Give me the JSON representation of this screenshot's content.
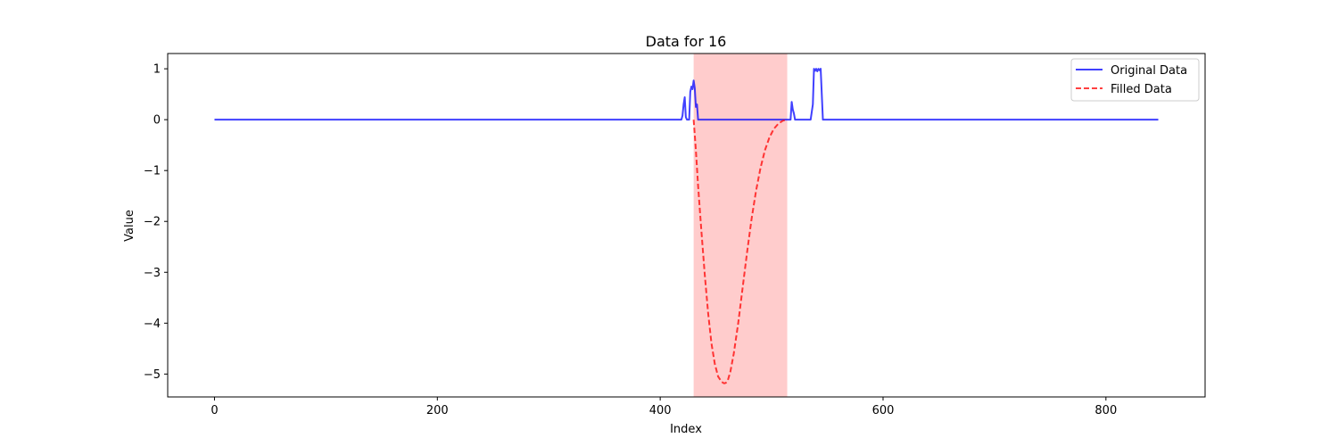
{
  "chart_data": {
    "type": "line",
    "title": "Data for 16",
    "xlabel": "Index",
    "ylabel": "Value",
    "xlim": [
      -42,
      889
    ],
    "ylim": [
      -5.45,
      1.3
    ],
    "x_ticks": [
      0,
      200,
      400,
      600,
      800
    ],
    "y_ticks": [
      1,
      0,
      -1,
      -2,
      -3,
      -4,
      -5
    ],
    "x_tick_labels": [
      "0",
      "200",
      "400",
      "600",
      "800"
    ],
    "y_tick_labels": [
      "1",
      "0",
      "−1",
      "−2",
      "−3",
      "−4",
      "−5"
    ],
    "grid": false,
    "legend_position": "top-right",
    "shaded_region": {
      "x_start": 430,
      "x_end": 514,
      "color": "#ff0000",
      "alpha": 0.2
    },
    "series": [
      {
        "name": "Original Data",
        "color": "#0000ff",
        "style": "solid",
        "x": [
          0,
          419,
          420,
          421,
          422,
          423,
          424,
          426,
          427,
          428,
          429,
          430,
          431,
          432,
          433,
          434,
          515,
          517,
          518,
          519,
          520,
          521,
          535,
          537,
          538,
          539,
          540,
          541,
          542,
          543,
          544,
          545,
          546,
          548,
          549,
          847
        ],
        "y": [
          0,
          0,
          0.08,
          0.3,
          0.44,
          0.05,
          0,
          0,
          0.55,
          0.65,
          0.6,
          0.77,
          0.62,
          0.25,
          0.3,
          0,
          0,
          0,
          0.35,
          0.2,
          0.12,
          0,
          0,
          0.3,
          1.0,
          0.96,
          1.0,
          0.95,
          1.0,
          0.97,
          1.0,
          0.5,
          0,
          0,
          0,
          0
        ]
      },
      {
        "name": "Filled Data",
        "color": "#ff0000",
        "style": "dashed",
        "x": [
          430,
          432,
          434,
          437,
          440,
          443,
          446,
          449,
          452,
          455,
          457,
          458,
          459,
          460,
          461,
          463,
          466,
          470,
          474,
          478,
          482,
          486,
          490,
          494,
          498,
          502,
          506,
          510,
          514
        ],
        "y": [
          0,
          -0.6,
          -1.3,
          -2.2,
          -3.05,
          -3.8,
          -4.4,
          -4.8,
          -5.05,
          -5.15,
          -5.18,
          -5.18,
          -5.17,
          -5.15,
          -5.1,
          -4.95,
          -4.6,
          -4.0,
          -3.3,
          -2.6,
          -1.95,
          -1.4,
          -0.95,
          -0.6,
          -0.35,
          -0.18,
          -0.08,
          -0.02,
          0
        ]
      }
    ]
  }
}
